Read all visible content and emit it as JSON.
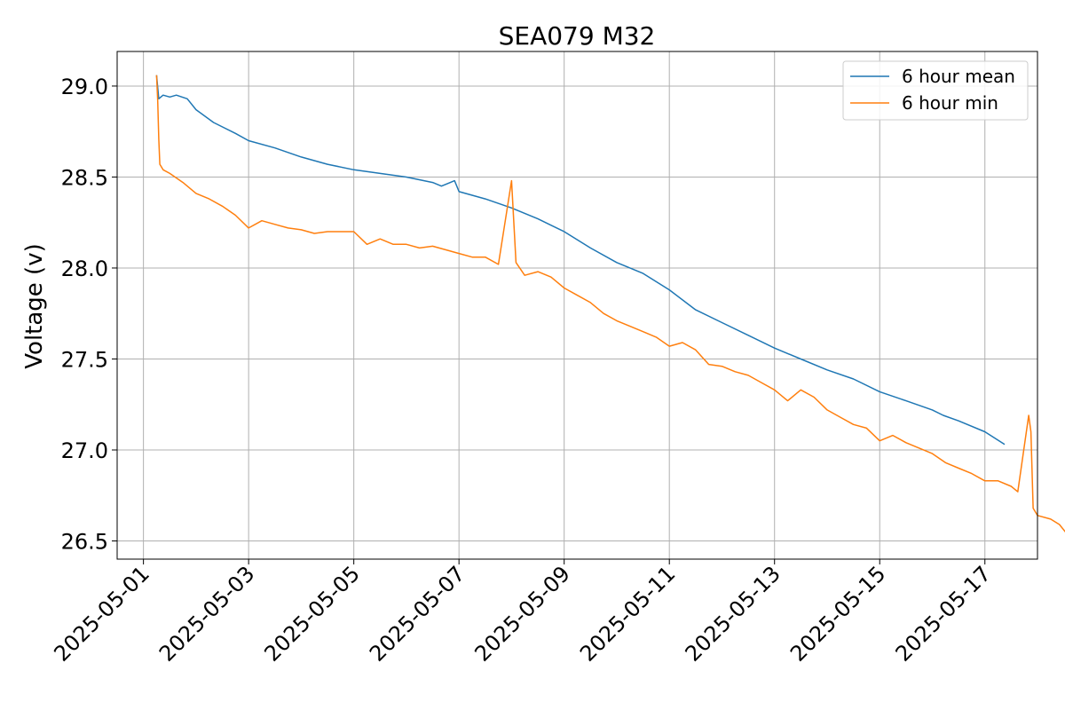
{
  "chart_data": {
    "type": "line",
    "title": "SEA079 M32",
    "xlabel": "",
    "ylabel": "Voltage (v)",
    "x_axis_type": "date",
    "xlim": [
      "2025-04-30T12:00",
      "2025-05-18T00:00"
    ],
    "ylim": [
      26.4,
      29.19
    ],
    "grid": true,
    "legend_position": "top-right",
    "x_ticks": [
      "2025-05-01",
      "2025-05-03",
      "2025-05-05",
      "2025-05-07",
      "2025-05-09",
      "2025-05-11",
      "2025-05-13",
      "2025-05-15",
      "2025-05-17"
    ],
    "y_ticks": [
      {
        "value": 26.5,
        "label": "26.5"
      },
      {
        "value": 27.0,
        "label": "27.0"
      },
      {
        "value": 27.5,
        "label": "27.5"
      },
      {
        "value": 28.0,
        "label": "28.0"
      },
      {
        "value": 28.5,
        "label": "28.5"
      },
      {
        "value": 29.0,
        "label": "29.0"
      }
    ],
    "series": [
      {
        "name": "6 hour mean",
        "color": "#1f77b4",
        "points": [
          [
            "2025-05-01T06:00",
            29.06
          ],
          [
            "2025-05-01T07:00",
            28.93
          ],
          [
            "2025-05-01T09:00",
            28.95
          ],
          [
            "2025-05-01T12:00",
            28.94
          ],
          [
            "2025-05-01T15:00",
            28.95
          ],
          [
            "2025-05-01T20:00",
            28.93
          ],
          [
            "2025-05-02T00:00",
            28.87
          ],
          [
            "2025-05-02T08:00",
            28.8
          ],
          [
            "2025-05-02T18:00",
            28.74
          ],
          [
            "2025-05-03T00:00",
            28.7
          ],
          [
            "2025-05-03T12:00",
            28.66
          ],
          [
            "2025-05-04T00:00",
            28.61
          ],
          [
            "2025-05-04T12:00",
            28.57
          ],
          [
            "2025-05-05T00:00",
            28.54
          ],
          [
            "2025-05-05T12:00",
            28.52
          ],
          [
            "2025-05-06T00:00",
            28.5
          ],
          [
            "2025-05-06T12:00",
            28.47
          ],
          [
            "2025-05-06T16:00",
            28.45
          ],
          [
            "2025-05-06T22:00",
            28.48
          ],
          [
            "2025-05-07T00:00",
            28.42
          ],
          [
            "2025-05-07T12:00",
            28.38
          ],
          [
            "2025-05-08T00:00",
            28.33
          ],
          [
            "2025-05-08T12:00",
            28.27
          ],
          [
            "2025-05-09T00:00",
            28.2
          ],
          [
            "2025-05-09T12:00",
            28.11
          ],
          [
            "2025-05-10T00:00",
            28.03
          ],
          [
            "2025-05-10T12:00",
            27.97
          ],
          [
            "2025-05-11T00:00",
            27.88
          ],
          [
            "2025-05-11T12:00",
            27.77
          ],
          [
            "2025-05-12T00:00",
            27.7
          ],
          [
            "2025-05-12T12:00",
            27.63
          ],
          [
            "2025-05-13T00:00",
            27.56
          ],
          [
            "2025-05-13T12:00",
            27.5
          ],
          [
            "2025-05-14T00:00",
            27.44
          ],
          [
            "2025-05-14T12:00",
            27.39
          ],
          [
            "2025-05-15T00:00",
            27.32
          ],
          [
            "2025-05-15T12:00",
            27.27
          ],
          [
            "2025-05-16T00:00",
            27.22
          ],
          [
            "2025-05-16T05:00",
            27.19
          ],
          [
            "2025-05-16T12:00",
            27.16
          ],
          [
            "2025-05-17T00:00",
            27.1
          ],
          [
            "2025-05-17T09:00",
            27.03
          ]
        ]
      },
      {
        "name": "6 hour min",
        "color": "#ff7f0e",
        "points": [
          [
            "2025-05-01T06:00",
            29.06
          ],
          [
            "2025-05-01T06:30",
            28.92
          ],
          [
            "2025-05-01T07:00",
            28.71
          ],
          [
            "2025-05-01T07:30",
            28.57
          ],
          [
            "2025-05-01T09:00",
            28.54
          ],
          [
            "2025-05-01T12:00",
            28.52
          ],
          [
            "2025-05-01T18:00",
            28.47
          ],
          [
            "2025-05-02T00:00",
            28.41
          ],
          [
            "2025-05-02T06:00",
            28.38
          ],
          [
            "2025-05-02T12:00",
            28.34
          ],
          [
            "2025-05-02T18:00",
            28.29
          ],
          [
            "2025-05-03T00:00",
            28.22
          ],
          [
            "2025-05-03T06:00",
            28.26
          ],
          [
            "2025-05-03T12:00",
            28.24
          ],
          [
            "2025-05-03T18:00",
            28.22
          ],
          [
            "2025-05-04T00:00",
            28.21
          ],
          [
            "2025-05-04T06:00",
            28.19
          ],
          [
            "2025-05-04T12:00",
            28.2
          ],
          [
            "2025-05-04T18:00",
            28.2
          ],
          [
            "2025-05-05T00:00",
            28.2
          ],
          [
            "2025-05-05T06:00",
            28.13
          ],
          [
            "2025-05-05T12:00",
            28.16
          ],
          [
            "2025-05-05T18:00",
            28.13
          ],
          [
            "2025-05-06T00:00",
            28.13
          ],
          [
            "2025-05-06T06:00",
            28.11
          ],
          [
            "2025-05-06T12:00",
            28.12
          ],
          [
            "2025-05-06T18:00",
            28.1
          ],
          [
            "2025-05-07T00:00",
            28.08
          ],
          [
            "2025-05-07T06:00",
            28.06
          ],
          [
            "2025-05-07T12:00",
            28.06
          ],
          [
            "2025-05-07T18:00",
            28.02
          ],
          [
            "2025-05-08T00:00",
            28.48
          ],
          [
            "2025-05-08T02:00",
            28.03
          ],
          [
            "2025-05-08T06:00",
            27.96
          ],
          [
            "2025-05-08T12:00",
            27.98
          ],
          [
            "2025-05-08T18:00",
            27.95
          ],
          [
            "2025-05-09T00:00",
            27.89
          ],
          [
            "2025-05-09T06:00",
            27.85
          ],
          [
            "2025-05-09T12:00",
            27.81
          ],
          [
            "2025-05-09T18:00",
            27.75
          ],
          [
            "2025-05-10T00:00",
            27.71
          ],
          [
            "2025-05-10T06:00",
            27.68
          ],
          [
            "2025-05-10T12:00",
            27.65
          ],
          [
            "2025-05-10T18:00",
            27.62
          ],
          [
            "2025-05-11T00:00",
            27.57
          ],
          [
            "2025-05-11T06:00",
            27.59
          ],
          [
            "2025-05-11T12:00",
            27.55
          ],
          [
            "2025-05-11T18:00",
            27.47
          ],
          [
            "2025-05-12T00:00",
            27.46
          ],
          [
            "2025-05-12T06:00",
            27.43
          ],
          [
            "2025-05-12T12:00",
            27.41
          ],
          [
            "2025-05-12T18:00",
            27.37
          ],
          [
            "2025-05-13T00:00",
            27.33
          ],
          [
            "2025-05-13T06:00",
            27.27
          ],
          [
            "2025-05-13T12:00",
            27.33
          ],
          [
            "2025-05-13T18:00",
            27.29
          ],
          [
            "2025-05-14T00:00",
            27.22
          ],
          [
            "2025-05-14T06:00",
            27.18
          ],
          [
            "2025-05-14T12:00",
            27.14
          ],
          [
            "2025-05-14T18:00",
            27.12
          ],
          [
            "2025-05-15T00:00",
            27.05
          ],
          [
            "2025-05-15T06:00",
            27.08
          ],
          [
            "2025-05-15T12:00",
            27.04
          ],
          [
            "2025-05-15T18:00",
            27.01
          ],
          [
            "2025-05-16T00:00",
            26.98
          ],
          [
            "2025-05-16T06:00",
            26.93
          ],
          [
            "2025-05-16T12:00",
            26.9
          ],
          [
            "2025-05-16T18:00",
            26.87
          ],
          [
            "2025-05-17T00:00",
            26.83
          ],
          [
            "2025-05-17T06:00",
            26.83
          ],
          [
            "2025-05-17T12:00",
            26.8
          ],
          [
            "2025-05-17T15:00",
            26.77
          ],
          [
            "2025-05-17T20:00",
            27.19
          ],
          [
            "2025-05-17T21:00",
            27.1
          ],
          [
            "2025-05-17T22:00",
            26.68
          ],
          [
            "2025-05-18T00:00",
            26.64
          ],
          [
            "2025-05-18T06:00",
            26.62
          ],
          [
            "2025-05-18T10:00",
            26.59
          ],
          [
            "2025-05-18T14:00",
            26.53
          ]
        ]
      }
    ]
  }
}
